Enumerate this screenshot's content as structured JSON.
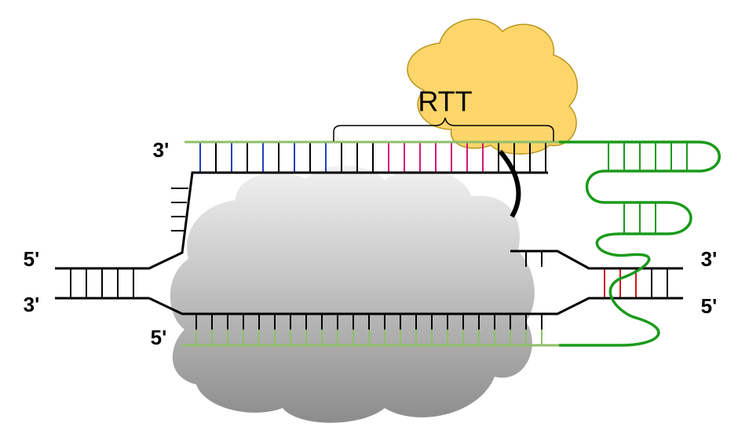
{
  "labels": {
    "rtt": "RTT",
    "top_left_3": "3'",
    "left_top_5": "5'",
    "left_bottom_3": "3'",
    "bottom_5": "5'",
    "right_top_3": "3'",
    "right_bottom_5": "5'"
  }
}
